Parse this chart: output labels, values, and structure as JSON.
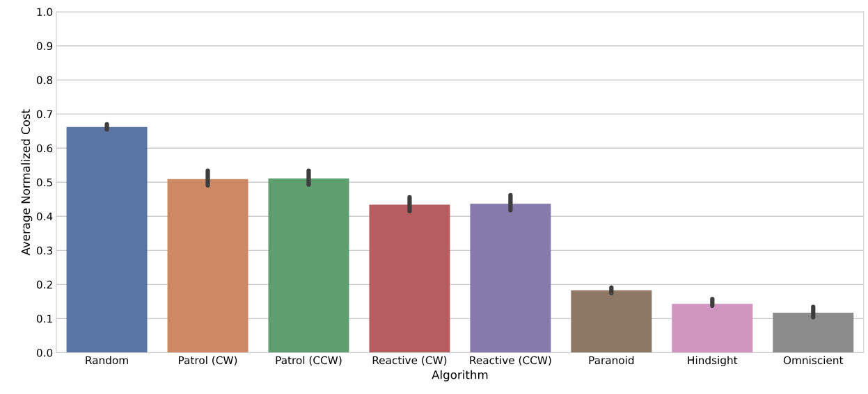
{
  "chart_data": {
    "type": "bar",
    "xlabel": "Algorithm",
    "ylabel": "Average Normalized Cost",
    "categories": [
      "Random",
      "Patrol (CW)",
      "Patrol (CCW)",
      "Reactive (CW)",
      "Reactive (CCW)",
      "Paranoid",
      "Hindsight",
      "Omniscient"
    ],
    "values": [
      0.662,
      0.509,
      0.511,
      0.434,
      0.437,
      0.183,
      0.143,
      0.117
    ],
    "errors": [
      [
        0.655,
        0.67
      ],
      [
        0.491,
        0.534
      ],
      [
        0.493,
        0.534
      ],
      [
        0.415,
        0.456
      ],
      [
        0.418,
        0.462
      ],
      [
        0.175,
        0.191
      ],
      [
        0.138,
        0.157
      ],
      [
        0.104,
        0.134
      ]
    ],
    "colors": [
      "#5875a4",
      "#cc8963",
      "#5f9e6e",
      "#b55d60",
      "#857aab",
      "#8d7866",
      "#d095bf",
      "#8c8c8c"
    ],
    "ylim": [
      0,
      1.0
    ],
    "yticks": [
      {
        "value": 0,
        "label": "0.0"
      },
      0.1,
      0.2,
      0.3,
      0.4,
      0.5,
      0.6,
      0.7,
      0.8,
      0.9,
      {
        "value": 1,
        "label": "1.0"
      }
    ],
    "grid": "y"
  }
}
